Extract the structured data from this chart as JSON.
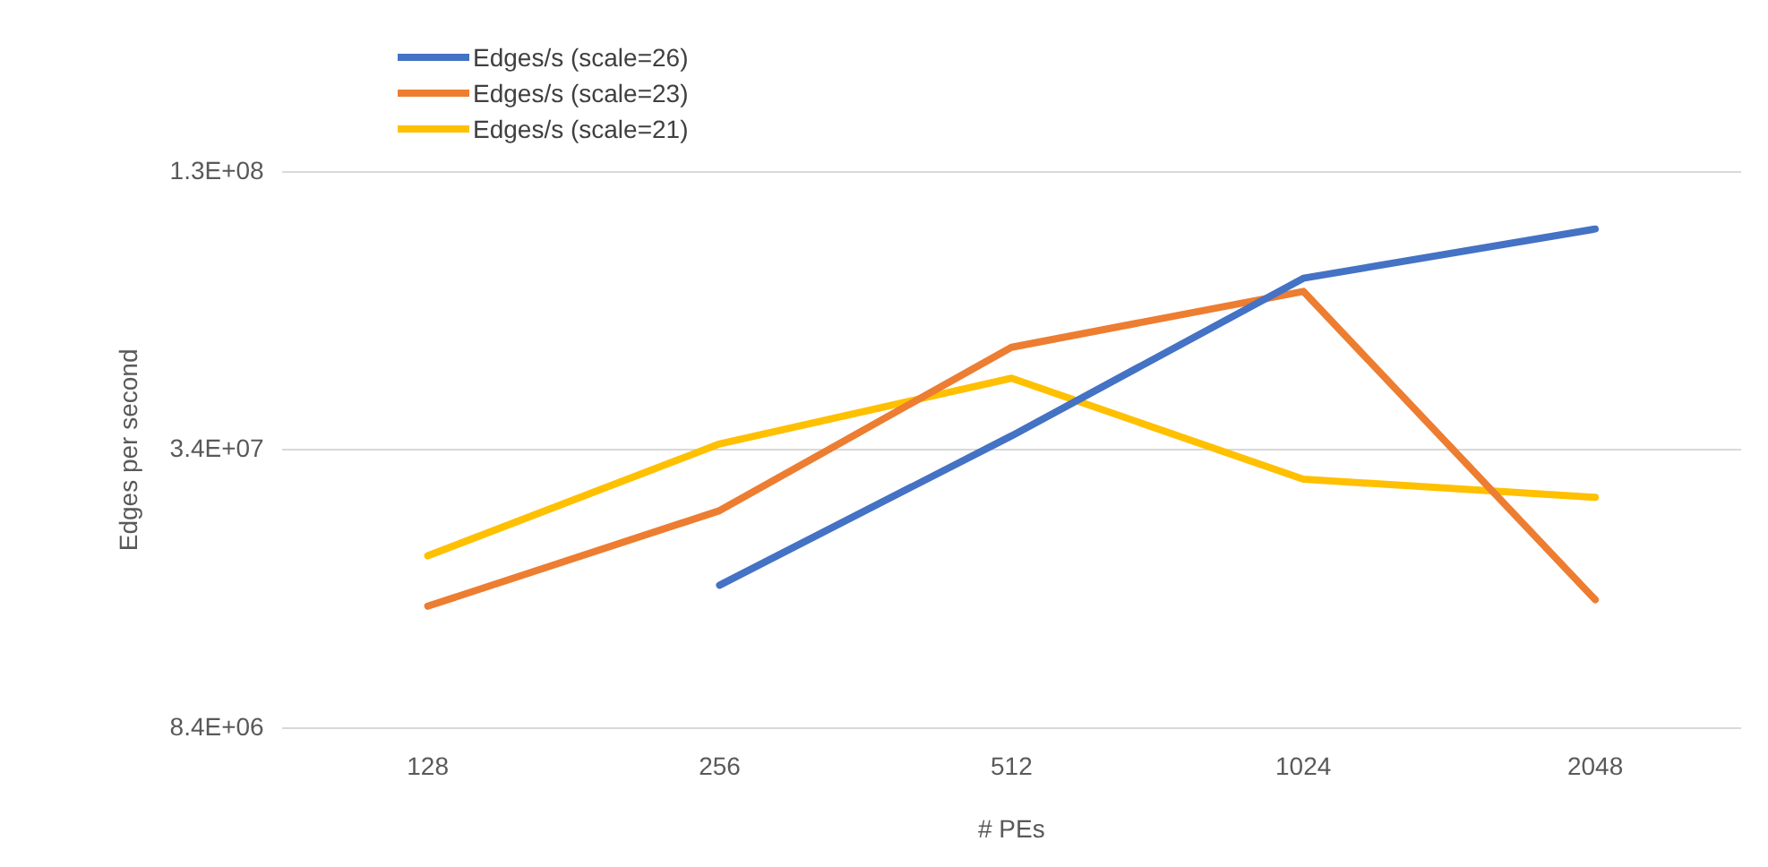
{
  "chart_data": {
    "type": "line",
    "xlabel": "# PEs",
    "ylabel": "Edges per second",
    "categories": [
      "128",
      "256",
      "512",
      "1024",
      "2048"
    ],
    "series": [
      {
        "name": "Edges/s (scale=26)",
        "color": "#4472c4",
        "values": [
          null,
          17100000.0,
          36000000.0,
          79000000.0,
          101000000.0
        ]
      },
      {
        "name": "Edges/s (scale=23)",
        "color": "#ed7d31",
        "values": [
          15400000.0,
          24800000.0,
          56000000.0,
          74000000.0,
          15900000.0
        ]
      },
      {
        "name": "Edges/s (scale=21)",
        "color": "#ffc000",
        "values": [
          19800000.0,
          34600000.0,
          48000000.0,
          29000000.0,
          26500000.0
        ]
      }
    ],
    "log": "y",
    "ylim": [
      8388608,
      134217728
    ],
    "yticks": [
      {
        "value": 8388608,
        "label": "8.4E+06"
      },
      {
        "value": 33554432,
        "label": "3.4E+07"
      },
      {
        "value": 134217728,
        "label": "1.3E+08"
      }
    ],
    "grid": "y",
    "legend": "top left",
    "marker": "none",
    "line_style": "solid"
  }
}
